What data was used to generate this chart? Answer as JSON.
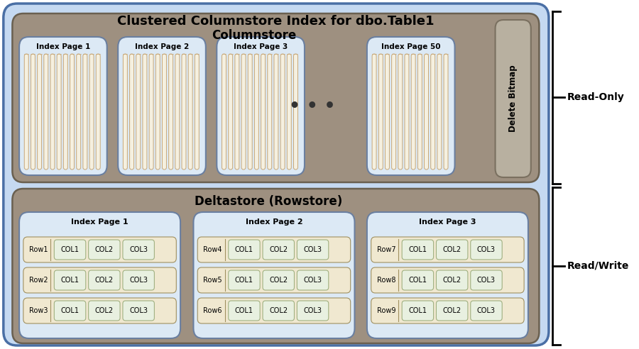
{
  "title": "Clustered Columnstore Index for dbo.Table1",
  "outer_bg": "#c5d9f1",
  "outer_border": "#4a6fa5",
  "columnstore_bg": "#9e9080",
  "deltastore_bg": "#9e9080",
  "cs_page_bg": "#dce9f5",
  "cs_page_border": "#6a7fa0",
  "ds_page_bg": "#dce9f5",
  "ds_page_border": "#6a7fa0",
  "delete_bitmap_bg": "#b8b0a0",
  "delete_bitmap_border": "#7a7060",
  "stripe_color": "#c8a878",
  "stripe_bg": "#f5f0e0",
  "row_label_bg": "#f0e8d0",
  "row_label_border": "#a09060",
  "col_box_bg": "#e8f0e0",
  "col_box_border": "#a0b080",
  "columnstore_pages": [
    "Index Page 1",
    "Index Page 2",
    "Index Page 3",
    "Index Page 50"
  ],
  "deltastore_sections": [
    {
      "title": "Index Page 1",
      "rows": [
        [
          "Row1",
          "COL1",
          "COL2",
          "COL3"
        ],
        [
          "Row2",
          "COL1",
          "COL2",
          "COL3"
        ],
        [
          "Row3",
          "COL1",
          "COL2",
          "COL3"
        ]
      ]
    },
    {
      "title": "Index Page 2",
      "rows": [
        [
          "Row4",
          "COL1",
          "COL2",
          "COL3"
        ],
        [
          "Row5",
          "COL1",
          "COL2",
          "COL3"
        ],
        [
          "Row6",
          "COL1",
          "COL2",
          "COL3"
        ]
      ]
    },
    {
      "title": "Index Page 3",
      "rows": [
        [
          "Row7",
          "COL1",
          "COL2",
          "COL3"
        ],
        [
          "Row8",
          "COL1",
          "COL2",
          "COL3"
        ],
        [
          "Row9",
          "COL1",
          "COL2",
          "COL3"
        ]
      ]
    }
  ],
  "read_only_label": "Read-Only",
  "read_write_label": "Read/Write"
}
